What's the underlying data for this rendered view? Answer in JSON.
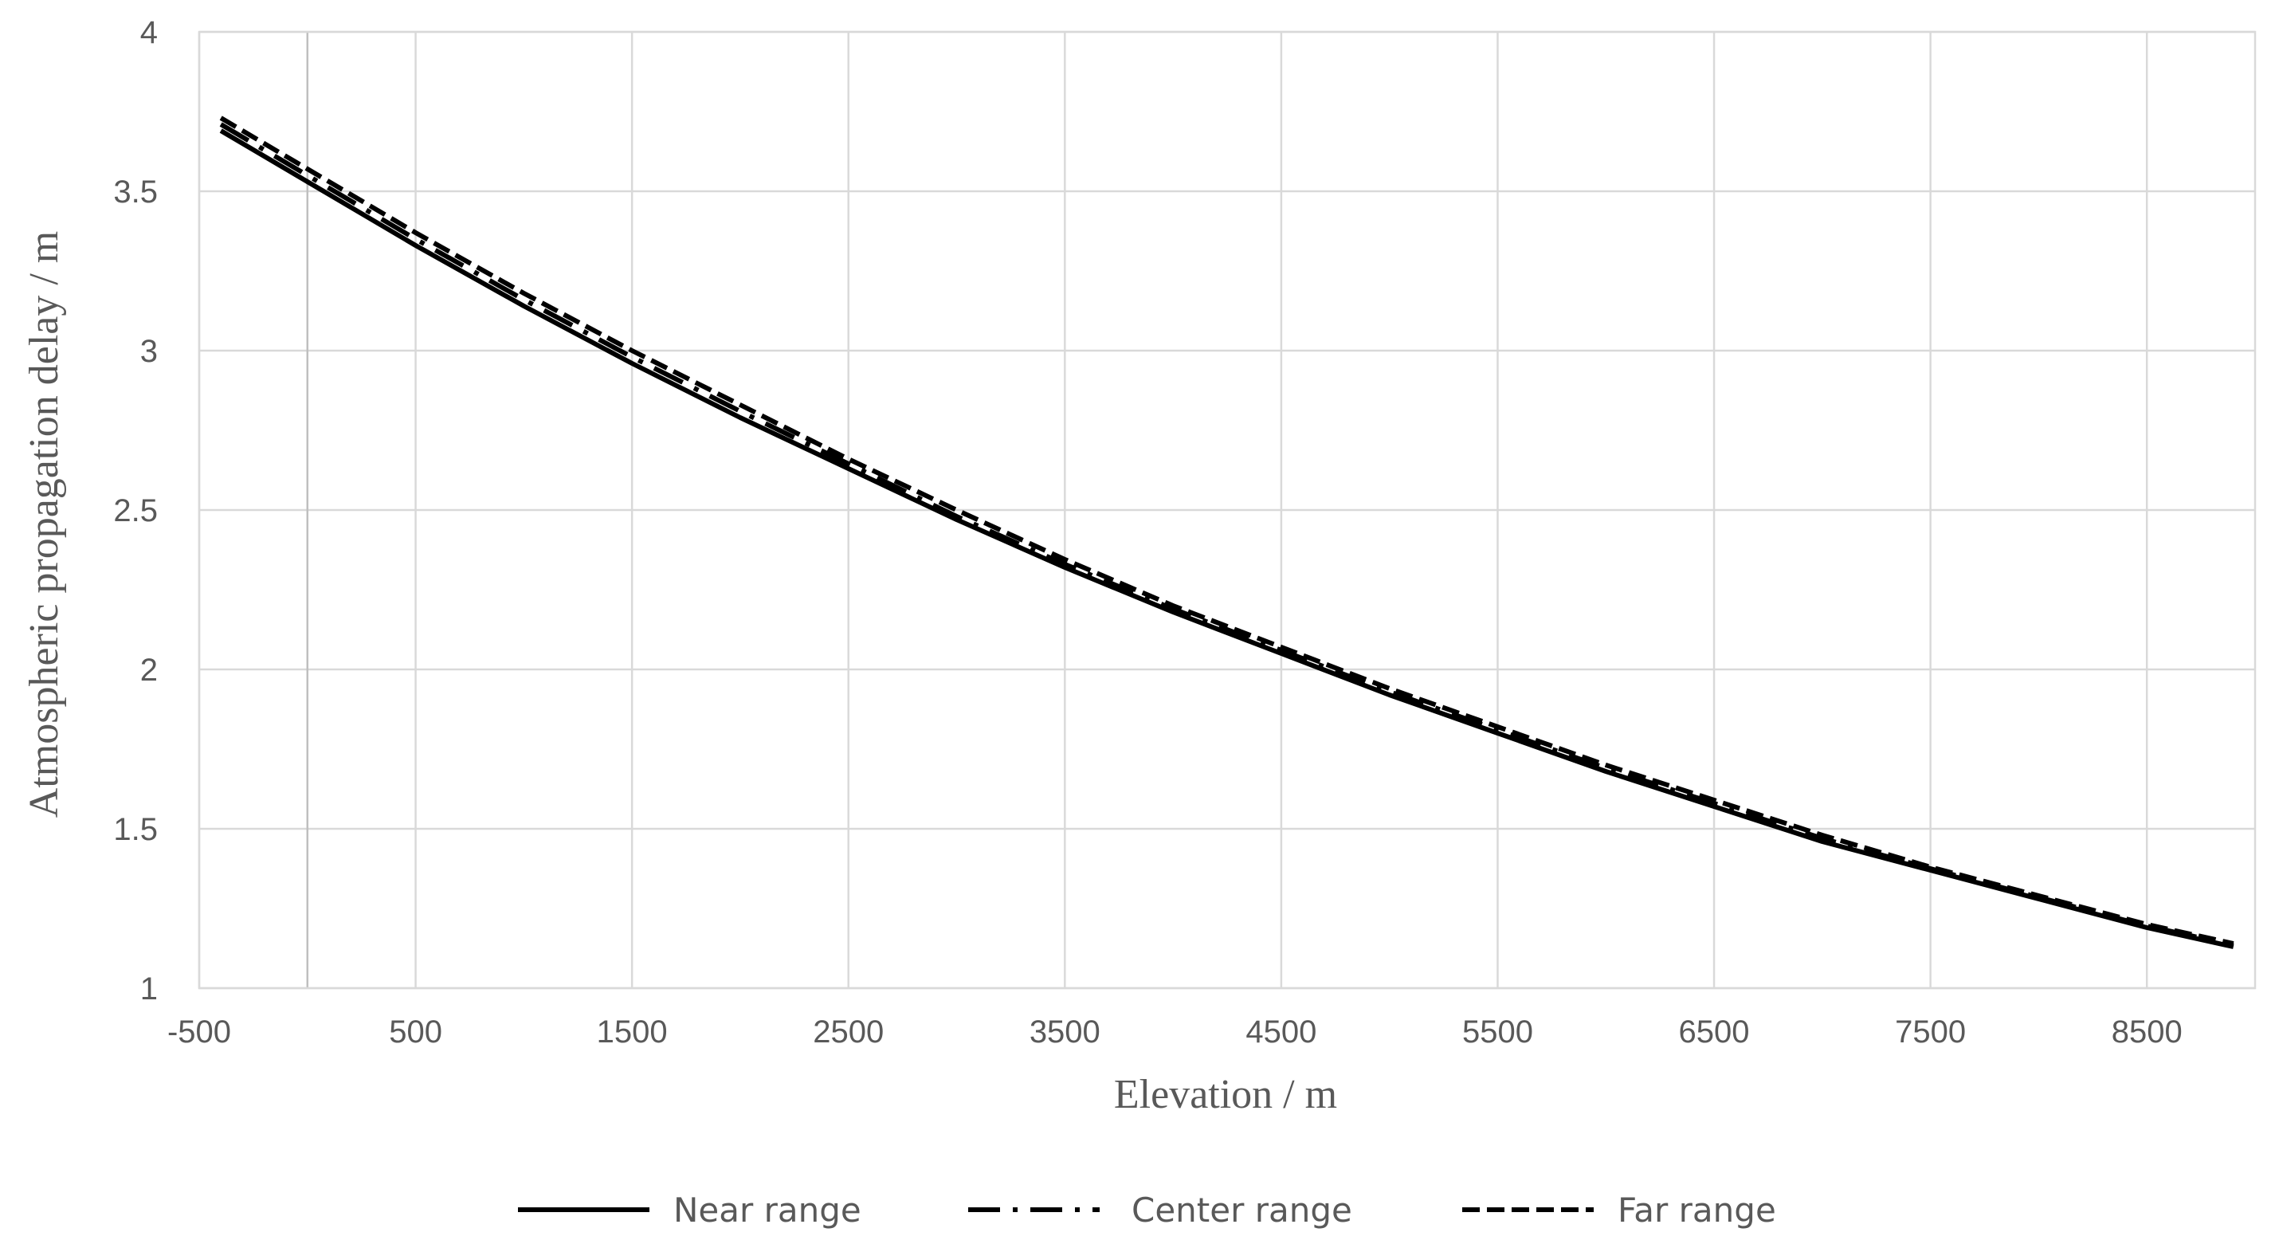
{
  "chart_data": {
    "type": "line",
    "title": "",
    "xlabel": "Elevation / m",
    "ylabel": "Atmospheric propagation delay / m",
    "xlim": [
      -500,
      9000
    ],
    "ylim": [
      1,
      4
    ],
    "x_ticks": [
      -500,
      500,
      1500,
      2500,
      3500,
      4500,
      5500,
      6500,
      7500,
      8500
    ],
    "x_tick_labels": [
      "-500",
      "500",
      "1500",
      "2500",
      "3500",
      "4500",
      "5500",
      "6500",
      "7500",
      "8500"
    ],
    "y_ticks": [
      1,
      1.5,
      2,
      2.5,
      3,
      3.5,
      4
    ],
    "y_tick_labels": [
      "1",
      "1.5",
      "2",
      "2.5",
      "3",
      "3.5",
      "4"
    ],
    "grid": true,
    "legend_position": "bottom",
    "x": [
      -400,
      0,
      500,
      1000,
      1500,
      2000,
      2500,
      3000,
      3500,
      4000,
      4500,
      5000,
      5500,
      6000,
      6500,
      7000,
      7500,
      8000,
      8500,
      8900
    ],
    "series": [
      {
        "name": "Near range",
        "style": "solid",
        "values": [
          3.69,
          3.53,
          3.33,
          3.14,
          2.96,
          2.79,
          2.63,
          2.47,
          2.32,
          2.18,
          2.05,
          1.92,
          1.8,
          1.68,
          1.57,
          1.46,
          1.37,
          1.28,
          1.19,
          1.13
        ]
      },
      {
        "name": "Center range",
        "style": "dashdot",
        "values": [
          3.71,
          3.55,
          3.35,
          3.16,
          2.98,
          2.81,
          2.645,
          2.48,
          2.33,
          2.19,
          2.06,
          1.93,
          1.81,
          1.69,
          1.58,
          1.47,
          1.375,
          1.285,
          1.195,
          1.135
        ]
      },
      {
        "name": "Far range",
        "style": "dashed",
        "values": [
          3.73,
          3.57,
          3.37,
          3.18,
          3.0,
          2.83,
          2.66,
          2.5,
          2.345,
          2.2,
          2.07,
          1.94,
          1.82,
          1.7,
          1.59,
          1.48,
          1.38,
          1.29,
          1.2,
          1.14
        ]
      }
    ]
  }
}
